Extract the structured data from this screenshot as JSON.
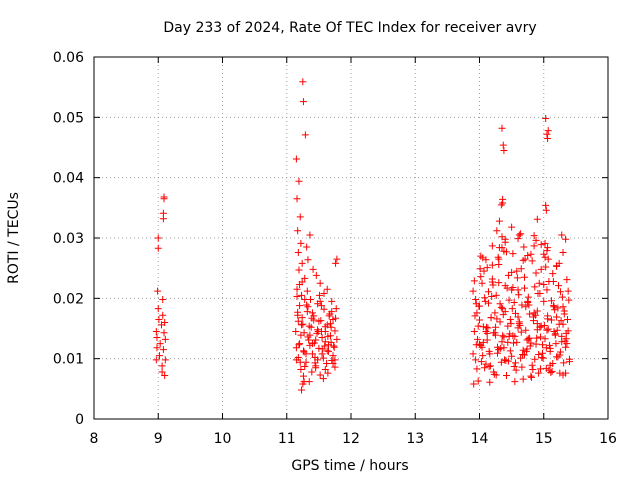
{
  "chart_data": {
    "type": "scatter",
    "title": "Day 233 of 2024, Rate Of TEC Index for receiver avry",
    "xlabel": "GPS time / hours",
    "ylabel": "ROTI / TECUs",
    "xlim": [
      8,
      16
    ],
    "ylim": [
      0,
      0.06
    ],
    "xticks": [
      8,
      9,
      10,
      11,
      12,
      13,
      14,
      15,
      16
    ],
    "xtick_labels": [
      "8",
      "9",
      "10",
      "11",
      "12",
      "13",
      "14",
      "15",
      "16"
    ],
    "yticks": [
      0,
      0.01,
      0.02,
      0.03,
      0.04,
      0.05,
      0.06
    ],
    "ytick_labels": [
      "0",
      "0.01",
      "0.02",
      "0.03",
      "0.04",
      "0.05",
      "0.06"
    ],
    "grid": true,
    "marker": "+",
    "color": "#ff0000",
    "series": [
      {
        "name": "ROTI",
        "x": [
          8.97,
          8.97,
          8.98,
          8.98,
          8.99,
          9.0,
          9.0,
          9.0,
          9.01,
          9.02,
          9.03,
          9.05,
          9.06,
          9.06,
          9.07,
          9.07,
          9.08,
          9.08,
          9.08,
          9.09,
          9.09,
          9.09,
          9.1,
          9.1,
          9.11,
          9.11,
          11.14,
          11.15,
          11.16,
          11.17,
          11.19,
          11.2,
          11.22,
          11.23,
          11.25,
          11.27,
          11.28,
          11.3,
          11.32,
          11.33,
          11.35,
          11.37,
          11.38,
          11.4,
          11.42,
          11.43,
          11.45,
          11.47,
          11.48,
          11.5,
          11.52,
          11.53,
          11.55,
          11.57,
          11.58,
          11.6,
          11.62,
          11.63,
          11.65,
          11.67,
          11.68,
          11.7,
          11.72,
          11.73,
          11.75,
          11.77,
          11.78,
          11.15,
          11.18,
          11.21,
          11.24,
          11.27,
          11.3,
          11.33,
          11.36,
          11.39,
          11.42,
          11.45,
          11.48,
          11.51,
          11.54,
          11.57,
          11.6,
          11.63,
          11.66,
          11.69,
          11.72,
          11.75,
          11.16,
          11.2,
          11.24,
          11.28,
          11.32,
          11.36,
          11.4,
          11.44,
          11.48,
          11.52,
          11.56,
          11.6,
          11.64,
          11.68,
          11.72,
          11.76,
          11.17,
          11.22,
          11.26,
          11.31,
          11.35,
          11.4,
          11.45,
          11.5,
          11.55,
          11.6,
          11.65,
          11.7,
          11.75,
          11.18,
          11.23,
          11.28,
          11.34,
          11.39,
          11.44,
          11.49,
          11.54,
          11.59,
          11.64,
          11.69,
          11.74,
          11.15,
          11.19,
          11.21,
          11.22,
          11.24,
          11.25,
          11.26,
          11.29,
          11.31,
          11.33,
          11.36,
          11.41,
          11.46,
          11.52,
          11.58,
          11.63,
          11.7,
          11.76,
          11.78,
          11.16,
          11.17,
          11.18,
          11.19,
          11.2,
          11.23,
          11.25,
          11.26,
          11.27,
          13.9,
          13.92,
          13.94,
          13.96,
          13.98,
          14.0,
          14.02,
          14.04,
          14.06,
          14.08,
          14.1,
          14.12,
          14.14,
          14.16,
          14.18,
          14.2,
          14.22,
          14.24,
          14.26,
          14.28,
          14.3,
          14.32,
          14.34,
          14.36,
          14.38,
          14.4,
          14.42,
          14.44,
          14.46,
          14.48,
          14.5,
          14.52,
          14.54,
          14.56,
          14.58,
          14.6,
          14.62,
          14.64,
          14.66,
          14.68,
          14.7,
          14.72,
          14.74,
          14.76,
          14.78,
          14.8,
          14.82,
          14.84,
          14.86,
          14.88,
          14.9,
          14.92,
          14.94,
          14.96,
          14.98,
          15.0,
          15.02,
          15.04,
          15.06,
          15.08,
          15.1,
          15.12,
          15.14,
          15.16,
          15.18,
          15.2,
          15.22,
          15.24,
          15.26,
          15.28,
          15.3,
          15.32,
          15.34,
          15.36,
          15.38,
          15.4,
          13.91,
          13.95,
          13.99,
          14.03,
          14.07,
          14.11,
          14.15,
          14.19,
          14.23,
          14.27,
          14.31,
          14.35,
          14.39,
          14.43,
          14.47,
          14.51,
          14.55,
          14.59,
          14.63,
          14.67,
          14.71,
          14.75,
          14.79,
          14.83,
          14.87,
          14.91,
          14.95,
          14.99,
          15.03,
          15.07,
          15.11,
          15.15,
          15.19,
          15.23,
          15.27,
          15.31,
          15.35,
          15.39,
          13.93,
          13.97,
          14.01,
          14.05,
          14.09,
          14.13,
          14.17,
          14.21,
          14.25,
          14.29,
          14.33,
          14.37,
          14.41,
          14.45,
          14.49,
          14.53,
          14.57,
          14.61,
          14.65,
          14.69,
          14.73,
          14.77,
          14.81,
          14.85,
          14.89,
          14.93,
          14.97,
          15.01,
          15.05,
          15.09,
          15.13,
          15.17,
          15.21,
          15.25,
          15.29,
          15.33,
          15.37,
          13.9,
          13.94,
          13.98,
          14.02,
          14.06,
          14.1,
          14.14,
          14.18,
          14.22,
          14.26,
          14.3,
          14.34,
          14.38,
          14.42,
          14.46,
          14.5,
          14.54,
          14.58,
          14.62,
          14.66,
          14.7,
          14.74,
          14.78,
          14.82,
          14.86,
          14.9,
          14.94,
          14.98,
          15.02,
          15.06,
          15.1,
          15.14,
          15.18,
          15.22,
          15.26,
          15.3,
          15.34,
          15.38,
          13.92,
          13.96,
          14.0,
          14.04,
          14.08,
          14.12,
          14.16,
          14.2,
          14.24,
          14.28,
          14.32,
          14.36,
          14.4,
          14.44,
          14.48,
          14.52,
          14.56,
          14.6,
          14.64,
          14.68,
          14.72,
          14.76,
          14.8,
          14.84,
          14.88,
          14.92,
          14.96,
          15.0,
          15.04,
          15.08,
          15.12,
          15.16,
          15.2,
          15.24,
          15.28,
          15.32,
          15.36,
          15.4,
          13.95,
          14.0,
          14.05,
          14.1,
          14.15,
          14.2,
          14.25,
          14.3,
          14.35,
          14.4,
          14.45,
          14.5,
          14.55,
          14.6,
          14.65,
          14.7,
          14.75,
          14.8,
          14.85,
          14.9,
          14.95,
          15.0,
          15.05,
          15.1,
          15.15,
          15.2,
          15.25,
          15.3,
          15.35,
          14.02,
          14.12,
          14.2,
          14.27,
          14.3,
          14.31,
          14.34,
          14.35,
          14.36,
          14.36,
          14.38,
          14.4,
          14.5,
          14.52,
          14.6,
          14.62,
          14.68,
          14.75,
          14.85,
          14.88,
          14.9,
          14.96,
          15.02,
          15.03,
          15.04,
          15.05,
          15.06,
          15.07,
          15.2,
          15.28,
          15.3,
          15.34,
          14.35,
          14.37,
          14.38,
          15.03,
          15.05,
          15.06,
          15.07
        ],
        "y": [
          0.0145,
          0.0098,
          0.0118,
          0.0135,
          0.0212,
          0.0183,
          0.0283,
          0.03,
          0.0165,
          0.0105,
          0.0125,
          0.0156,
          0.0078,
          0.0088,
          0.0198,
          0.0172,
          0.0332,
          0.0341,
          0.0115,
          0.0365,
          0.0368,
          0.0143,
          0.0072,
          0.016,
          0.0098,
          0.0132,
          0.0145,
          0.0098,
          0.0215,
          0.0172,
          0.0123,
          0.0188,
          0.0082,
          0.0205,
          0.0157,
          0.0111,
          0.0233,
          0.0094,
          0.0178,
          0.0136,
          0.0062,
          0.0198,
          0.0152,
          0.0108,
          0.0171,
          0.0126,
          0.0088,
          0.0142,
          0.0191,
          0.0117,
          0.0073,
          0.0163,
          0.0135,
          0.0101,
          0.0182,
          0.0128,
          0.0092,
          0.0156,
          0.0112,
          0.0174,
          0.0138,
          0.0097,
          0.0165,
          0.0121,
          0.0086,
          0.0183,
          0.0132,
          0.0118,
          0.0162,
          0.0094,
          0.0227,
          0.0143,
          0.0108,
          0.0186,
          0.0122,
          0.0078,
          0.0164,
          0.0131,
          0.0098,
          0.0205,
          0.0145,
          0.0067,
          0.0153,
          0.0113,
          0.0171,
          0.0127,
          0.0092,
          0.0146,
          0.0203,
          0.0125,
          0.0168,
          0.0087,
          0.0212,
          0.0139,
          0.0176,
          0.0102,
          0.0148,
          0.0195,
          0.0116,
          0.0082,
          0.0137,
          0.0158,
          0.0105,
          0.0167,
          0.0177,
          0.0139,
          0.0113,
          0.0189,
          0.0154,
          0.0125,
          0.0085,
          0.0162,
          0.0108,
          0.0145,
          0.0123,
          0.0178,
          0.0098,
          0.0102,
          0.0156,
          0.0198,
          0.0131,
          0.0167,
          0.0093,
          0.0145,
          0.0188,
          0.0121,
          0.0076,
          0.0152,
          0.0119,
          0.0431,
          0.0394,
          0.0335,
          0.0291,
          0.0258,
          0.0559,
          0.0526,
          0.0471,
          0.0285,
          0.0264,
          0.0305,
          0.0248,
          0.0238,
          0.0225,
          0.0208,
          0.0215,
          0.0195,
          0.0258,
          0.0265,
          0.0365,
          0.0312,
          0.0276,
          0.0247,
          0.0223,
          0.0048,
          0.0058,
          0.0071,
          0.0062,
          0.0212,
          0.0145,
          0.0098,
          0.0176,
          0.0063,
          0.0187,
          0.0122,
          0.0225,
          0.0153,
          0.0085,
          0.0264,
          0.0131,
          0.0192,
          0.0108,
          0.0168,
          0.0227,
          0.0078,
          0.0143,
          0.0205,
          0.0119,
          0.0256,
          0.0161,
          0.0094,
          0.0183,
          0.0136,
          0.0221,
          0.0072,
          0.0154,
          0.0197,
          0.0113,
          0.0243,
          0.0138,
          0.0087,
          0.0175,
          0.0127,
          0.0214,
          0.0158,
          0.0101,
          0.0189,
          0.0066,
          0.0235,
          0.0147,
          0.0116,
          0.0202,
          0.0134,
          0.0273,
          0.0089,
          0.0163,
          0.0219,
          0.0124,
          0.0179,
          0.0076,
          0.0152,
          0.0248,
          0.0109,
          0.0195,
          0.0133,
          0.0084,
          0.0171,
          0.0228,
          0.0117,
          0.0164,
          0.0092,
          0.0186,
          0.0141,
          0.0253,
          0.0103,
          0.0157,
          0.0211,
          0.0128,
          0.0073,
          0.0174,
          0.0119,
          0.0231,
          0.0146,
          0.0095,
          0.0058,
          0.0123,
          0.0187,
          0.0095,
          0.0245,
          0.0152,
          0.0112,
          0.0203,
          0.0074,
          0.0166,
          0.0284,
          0.0128,
          0.0098,
          0.0217,
          0.0141,
          0.0183,
          0.0062,
          0.0234,
          0.0155,
          0.0107,
          0.0265,
          0.0193,
          0.0121,
          0.0082,
          0.0172,
          0.0208,
          0.0136,
          0.0101,
          0.0252,
          0.0149,
          0.0077,
          0.0188,
          0.0125,
          0.0221,
          0.0163,
          0.0093,
          0.0142,
          0.0197,
          0.0171,
          0.0132,
          0.0249,
          0.0105,
          0.0195,
          0.0151,
          0.0088,
          0.0222,
          0.0139,
          0.0268,
          0.0117,
          0.0173,
          0.0097,
          0.0238,
          0.0158,
          0.0126,
          0.0081,
          0.0206,
          0.0144,
          0.0285,
          0.0112,
          0.0189,
          0.0069,
          0.0176,
          0.0134,
          0.0225,
          0.0102,
          0.0155,
          0.0214,
          0.0122,
          0.0079,
          0.0181,
          0.0147,
          0.0106,
          0.0202,
          0.0129,
          0.0165,
          0.0108,
          0.0198,
          0.0154,
          0.0236,
          0.0127,
          0.0091,
          0.0211,
          0.0168,
          0.0143,
          0.0073,
          0.0226,
          0.0185,
          0.0118,
          0.0277,
          0.0137,
          0.0104,
          0.0193,
          0.0245,
          0.0161,
          0.0086,
          0.0217,
          0.0131,
          0.0174,
          0.0262,
          0.0099,
          0.0148,
          0.0208,
          0.0123,
          0.0291,
          0.0166,
          0.0089,
          0.0241,
          0.0139,
          0.0184,
          0.0111,
          0.0157,
          0.0076,
          0.0212,
          0.0229,
          0.0083,
          0.0164,
          0.0119,
          0.0201,
          0.0142,
          0.0061,
          0.0255,
          0.0176,
          0.0109,
          0.0191,
          0.0138,
          0.0298,
          0.0127,
          0.0165,
          0.0218,
          0.0093,
          0.0151,
          0.0307,
          0.0114,
          0.0186,
          0.0133,
          0.0071,
          0.0169,
          0.0242,
          0.0107,
          0.0154,
          0.0223,
          0.0118,
          0.0081,
          0.0196,
          0.0145,
          0.0103,
          0.0258,
          0.0137,
          0.0179,
          0.0125,
          0.0099,
          0.0191,
          0.0124,
          0.0267,
          0.0145,
          0.0087,
          0.0232,
          0.0152,
          0.0115,
          0.0284,
          0.0178,
          0.0096,
          0.0214,
          0.0137,
          0.0169,
          0.0249,
          0.0106,
          0.0195,
          0.0126,
          0.0304,
          0.0158,
          0.0083,
          0.0273,
          0.0147,
          0.0112,
          0.0228,
          0.0169,
          0.0076,
          0.0186,
          0.0133,
          0.027,
          0.0251,
          0.0287,
          0.0312,
          0.0265,
          0.0328,
          0.0355,
          0.0302,
          0.0358,
          0.0364,
          0.0278,
          0.0293,
          0.0318,
          0.0274,
          0.0299,
          0.0305,
          0.0263,
          0.0271,
          0.0287,
          0.0296,
          0.0331,
          0.0289,
          0.0268,
          0.0354,
          0.0346,
          0.0279,
          0.0284,
          0.0265,
          0.0254,
          0.0305,
          0.0276,
          0.0298,
          0.0482,
          0.0454,
          0.0445,
          0.0498,
          0.0472,
          0.0465,
          0.0478
        ]
      }
    ]
  }
}
